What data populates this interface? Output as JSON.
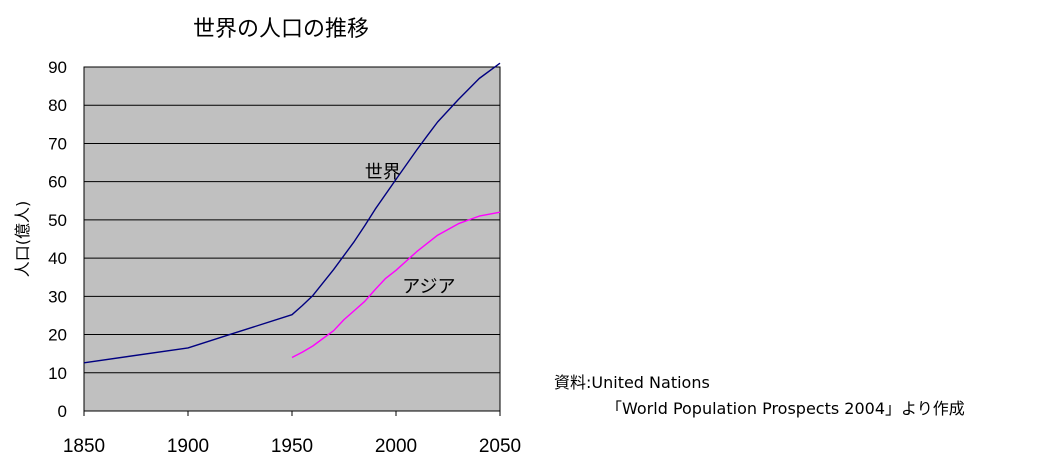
{
  "chart_data": {
    "type": "line",
    "title": "世界の人口の推移",
    "ylabel": "人口(億人)",
    "xlabel": "",
    "xlim": [
      1850,
      2050
    ],
    "ylim": [
      0,
      90
    ],
    "x_ticks": [
      "1850",
      "1900",
      "1950",
      "2000",
      "2050"
    ],
    "y_ticks": [
      "0",
      "10",
      "20",
      "30",
      "40",
      "50",
      "60",
      "70",
      "80",
      "90"
    ],
    "grid": "horizontal",
    "plot_background": "#c0c0c0",
    "series": [
      {
        "name": "世界",
        "color": "#000080",
        "x": [
          1850,
          1900,
          1920,
          1950,
          1955,
          1960,
          1970,
          1980,
          1985,
          1990,
          2000,
          2010,
          2015,
          2020,
          2030,
          2040,
          2050
        ],
        "y": [
          12.6,
          16.5,
          20.0,
          25.2,
          27.6,
          30.2,
          37.0,
          44.4,
          48.5,
          52.8,
          60.6,
          68.3,
          72.0,
          75.6,
          81.5,
          87.0,
          91.0
        ]
      },
      {
        "name": "アジア",
        "color": "#ff00ff",
        "x": [
          1950,
          1955,
          1960,
          1970,
          1975,
          1980,
          1985,
          1990,
          1995,
          2000,
          2010,
          2020,
          2030,
          2040,
          2050
        ],
        "y": [
          14.0,
          15.4,
          17.0,
          21.0,
          23.9,
          26.3,
          28.7,
          31.8,
          34.7,
          36.8,
          41.7,
          46.0,
          49.0,
          51.0,
          52.0
        ]
      }
    ],
    "annotations": [
      {
        "text": "世界",
        "x": 1985,
        "y": 61
      },
      {
        "text": "アジア",
        "x": 2003,
        "y": 31
      }
    ]
  },
  "source": {
    "line1": "資料:United Nations",
    "line2": "「World Population Prospects 2004」より作成"
  }
}
